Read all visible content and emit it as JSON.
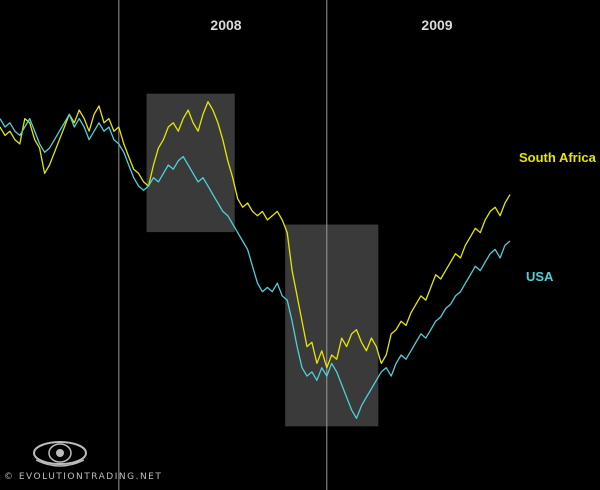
{
  "chart_data": {
    "type": "line",
    "title": "",
    "xlabel": "",
    "ylabel": "",
    "year_labels": [
      "2008",
      "2009"
    ],
    "grid": false,
    "background": "#000000",
    "highlight_color": "#3a3a3a",
    "series": [
      {
        "name": "South Africa",
        "color": "#e6e600",
        "values": [
          58,
          54,
          56,
          52,
          50,
          62,
          60,
          52,
          48,
          36,
          40,
          46,
          52,
          58,
          64,
          60,
          66,
          62,
          56,
          64,
          68,
          60,
          62,
          56,
          58,
          50,
          44,
          38,
          36,
          32,
          30,
          40,
          48,
          52,
          58,
          60,
          56,
          62,
          66,
          60,
          56,
          64,
          70,
          66,
          60,
          52,
          42,
          34,
          24,
          20,
          22,
          18,
          16,
          18,
          14,
          16,
          18,
          14,
          8,
          -10,
          -22,
          -34,
          -46,
          -44,
          -54,
          -48,
          -56,
          -50,
          -52,
          -42,
          -46,
          -40,
          -38,
          -44,
          -48,
          -42,
          -46,
          -54,
          -50,
          -40,
          -38,
          -34,
          -36,
          -30,
          -26,
          -22,
          -24,
          -18,
          -12,
          -14,
          -10,
          -6,
          -2,
          -4,
          2,
          6,
          10,
          8,
          14,
          18,
          20,
          16,
          22,
          26
        ]
      },
      {
        "name": "USA",
        "color": "#4fd0d8",
        "values": [
          62,
          58,
          60,
          56,
          54,
          58,
          62,
          56,
          50,
          46,
          48,
          52,
          56,
          60,
          64,
          58,
          62,
          58,
          52,
          56,
          60,
          56,
          58,
          52,
          50,
          46,
          40,
          34,
          30,
          28,
          30,
          34,
          32,
          36,
          40,
          38,
          42,
          44,
          40,
          36,
          32,
          34,
          30,
          26,
          22,
          18,
          16,
          12,
          8,
          4,
          0,
          -8,
          -16,
          -20,
          -18,
          -20,
          -16,
          -22,
          -24,
          -34,
          -46,
          -56,
          -60,
          -58,
          -62,
          -56,
          -60,
          -54,
          -58,
          -64,
          -70,
          -76,
          -80,
          -74,
          -70,
          -66,
          -62,
          -58,
          -56,
          -60,
          -54,
          -50,
          -52,
          -48,
          -44,
          -40,
          -42,
          -38,
          -34,
          -32,
          -28,
          -26,
          -22,
          -20,
          -16,
          -12,
          -8,
          -10,
          -6,
          -2,
          0,
          -4,
          2,
          4
        ]
      }
    ],
    "highlights": [
      {
        "start": 30,
        "end": 47
      },
      {
        "start": 58,
        "end": 76
      }
    ],
    "year_markers": [
      24,
      66
    ],
    "ylim": [
      -95,
      85
    ]
  },
  "watermark": {
    "text": "© EVOLUTIONTRADING.NET"
  }
}
